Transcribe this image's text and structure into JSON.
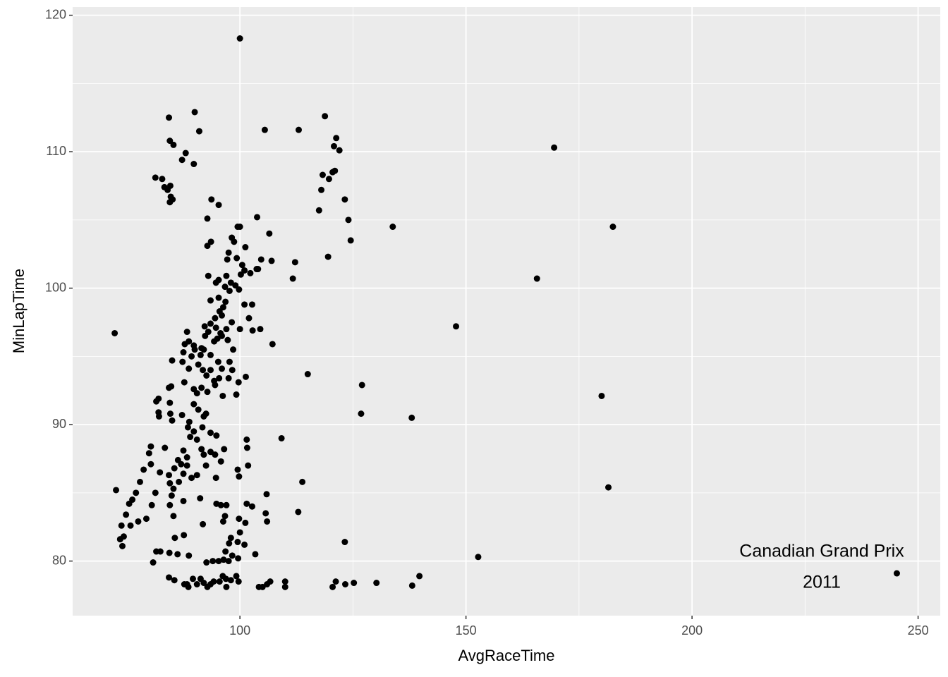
{
  "chart_data": {
    "type": "scatter",
    "x_label": "AvgRaceTime",
    "y_label": "MinLapTime",
    "annotation": [
      "Canadian Grand Prix",
      "2011"
    ],
    "color": "#000000",
    "grid": true,
    "xlim": [
      63.0,
      254.9
    ],
    "ylim": [
      76.0,
      120.6
    ],
    "xticks": [
      100,
      150,
      200,
      250
    ],
    "yticks": [
      80,
      90,
      100,
      110,
      120
    ],
    "x": [
      72.3,
      100,
      169.5,
      182.5,
      165.7,
      147.8,
      180,
      181.5,
      152.7,
      245.3,
      138,
      133.8,
      127,
      126.8,
      115,
      113.8,
      112.9,
      109.2,
      107.2,
      111.7,
      112.2,
      123.2,
      139.7,
      138.1,
      130.2,
      125.2,
      123.3,
      121.2,
      120.5,
      110,
      110,
      106.7,
      106,
      105,
      104.2,
      84.3,
      90,
      91,
      84.5,
      85.3,
      88,
      87.2,
      89.8,
      81.3,
      82.8,
      83.3,
      84.6,
      84,
      84.7,
      85.1,
      84.5,
      93.7,
      95.3,
      92.8,
      105.5,
      113,
      118.8,
      121.3,
      120.8,
      122,
      118.3,
      119.7,
      120.5,
      121,
      118,
      117.5,
      123.2,
      124,
      124.5,
      119.5,
      103.8,
      106.5,
      104.7,
      107,
      104,
      99.5,
      100,
      92.8,
      93.6,
      98.2,
      98.7,
      101.2,
      97.5,
      97.2,
      99.3,
      100.5,
      101,
      100.2,
      102.3,
      103.7,
      93,
      94.7,
      95.3,
      96.7,
      97,
      98,
      99,
      99.8,
      93.5,
      95.3,
      96.8,
      97.7,
      101,
      102.7,
      96.3,
      95.5,
      96,
      94.5,
      93.5,
      92.2,
      94.7,
      95.7,
      97,
      98.2,
      100,
      102,
      104.5,
      102.8,
      88.3,
      88.7,
      87.8,
      89.8,
      90,
      91.5,
      92.3,
      93,
      94.3,
      95,
      96,
      97.3,
      98.5,
      87.5,
      87.3,
      89.3,
      91.3,
      92,
      93.5,
      95.2,
      96,
      97.7,
      98.3,
      99.7,
      101.3,
      85,
      88.7,
      90.8,
      91.8,
      92.6,
      93.5,
      94.3,
      95.4,
      97.5,
      99.2,
      87.7,
      89.8,
      90.5,
      91.5,
      92.8,
      94.5,
      96.2,
      84.3,
      84.8,
      81.5,
      82,
      82,
      82.1,
      84.5,
      84.6,
      85,
      87.2,
      88.8,
      89.8,
      90.8,
      92,
      92.5,
      88.5,
      89,
      89.8,
      90.5,
      91.7,
      93.5,
      94.8,
      87.5,
      88.3,
      87,
      88.3,
      86.3,
      85.5,
      86.5,
      84.3,
      87.5,
      89.3,
      90.5,
      91.5,
      92,
      93.5,
      94.5,
      95.8,
      96.5,
      92.5,
      94.7,
      101.5,
      101.6,
      101.8,
      99.5,
      99.8,
      80.3,
      79.9,
      78.7,
      80.3,
      82.3,
      83.4,
      77.9,
      77,
      76.2,
      75.5,
      74.8,
      73.8,
      75.8,
      77.5,
      79.3,
      80.5,
      81.3,
      84.5,
      85.3,
      84.9,
      84.5,
      85.3,
      87.5,
      91.2,
      94.8,
      95.8,
      97,
      96.7,
      99.8,
      101.5,
      102.7,
      105.9,
      105.7,
      106,
      91.8,
      96.3,
      72.6,
      73.5,
      74,
      74.3,
      85.6,
      87.6,
      98,
      99.5,
      100,
      101.2,
      101,
      97.6,
      96.8,
      81.5,
      82.4,
      84.4,
      86.2,
      88.7,
      92.6,
      94,
      95.3,
      96.4,
      97.5,
      98.3,
      99.6,
      103.4,
      80.8,
      84.3,
      85.5,
      87.7,
      88.3,
      88.6,
      89.6,
      90.5,
      91.3,
      92,
      92.8,
      93.5,
      94.2,
      95.5,
      96.2,
      96.9,
      97,
      98,
      99.2,
      99.7
    ],
    "values": [
      96.7,
      118.3,
      110.3,
      104.5,
      100.7,
      97.2,
      92.1,
      85.4,
      80.3,
      79.1,
      90.5,
      104.5,
      92.9,
      90.8,
      93.7,
      85.8,
      83.6,
      89,
      95.9,
      100.7,
      101.9,
      81.4,
      78.9,
      78.2,
      78.4,
      78.4,
      78.3,
      78.5,
      78.1,
      78.5,
      78.1,
      78.5,
      78.3,
      78.1,
      78.1,
      112.5,
      112.9,
      111.5,
      110.8,
      110.5,
      109.9,
      109.4,
      109.1,
      108.1,
      108,
      107.4,
      107.5,
      107.2,
      106.7,
      106.5,
      106.3,
      106.5,
      106.1,
      105.1,
      111.6,
      111.6,
      112.6,
      111,
      110.4,
      110.1,
      108.3,
      108,
      108.5,
      108.6,
      107.2,
      105.7,
      106.5,
      105,
      103.5,
      102.3,
      105.2,
      104,
      102.1,
      102,
      101.4,
      104.5,
      104.5,
      103.1,
      103.4,
      103.7,
      103.4,
      103,
      102.6,
      102.1,
      102.2,
      101.7,
      101.3,
      101,
      101.1,
      101.4,
      100.9,
      100.4,
      100.6,
      100.1,
      100.9,
      100.4,
      100.2,
      99.9,
      99.1,
      99.3,
      99,
      99.8,
      98.8,
      98.8,
      98.6,
      98.3,
      98,
      97.8,
      97.4,
      97.2,
      97.1,
      96.7,
      97,
      97.5,
      97,
      97.8,
      97,
      96.9,
      96.8,
      96.1,
      95.9,
      95.8,
      95.5,
      95.6,
      96.5,
      96.8,
      96.1,
      96.3,
      96.5,
      96.2,
      95.5,
      95.3,
      94.6,
      95,
      95.1,
      95.5,
      95.1,
      94.6,
      94.1,
      94.6,
      94,
      93.1,
      93.5,
      94.7,
      94.1,
      94.4,
      94,
      93.6,
      94,
      93.2,
      93.4,
      93.4,
      92.2,
      93.1,
      92.6,
      92.3,
      92.7,
      92.4,
      92.9,
      92.1,
      92.7,
      92.8,
      91.7,
      91.9,
      90.9,
      90.6,
      91.6,
      90.8,
      90.3,
      90.7,
      90.2,
      91.5,
      91.1,
      90.6,
      90.8,
      89.8,
      89.1,
      89.5,
      88.9,
      89.8,
      89.4,
      89.2,
      88.1,
      87.6,
      87.1,
      87,
      87.4,
      86.8,
      85.8,
      86.3,
      86.4,
      86.1,
      86.3,
      88.2,
      87.8,
      88,
      87.8,
      87.3,
      88.2,
      87,
      86.1,
      88.9,
      88.3,
      87,
      86.7,
      86.2,
      88.4,
      87.9,
      86.7,
      87.1,
      86.5,
      88.3,
      85.8,
      85,
      84.5,
      84.2,
      83.4,
      82.6,
      82.6,
      82.9,
      83.1,
      84.1,
      85,
      85.7,
      85.3,
      84.8,
      84.1,
      83.3,
      84.4,
      84.6,
      84.2,
      84.1,
      84.1,
      83.3,
      83.1,
      84.2,
      84,
      84.9,
      83.5,
      82.9,
      82.7,
      82.9,
      85.2,
      81.6,
      81.1,
      81.8,
      81.7,
      81.9,
      81.7,
      81.4,
      82.1,
      82.8,
      81.2,
      81.3,
      80.7,
      80.7,
      80.7,
      80.6,
      80.5,
      80.4,
      79.9,
      80,
      80,
      80.1,
      80,
      80.4,
      80.2,
      80.5,
      79.9,
      78.8,
      78.6,
      78.3,
      78.3,
      78.1,
      78.7,
      78.3,
      78.7,
      78.4,
      78.1,
      78.3,
      78.5,
      78.5,
      78.9,
      78.7,
      78.1,
      78.6,
      78.9,
      78.5
    ]
  }
}
